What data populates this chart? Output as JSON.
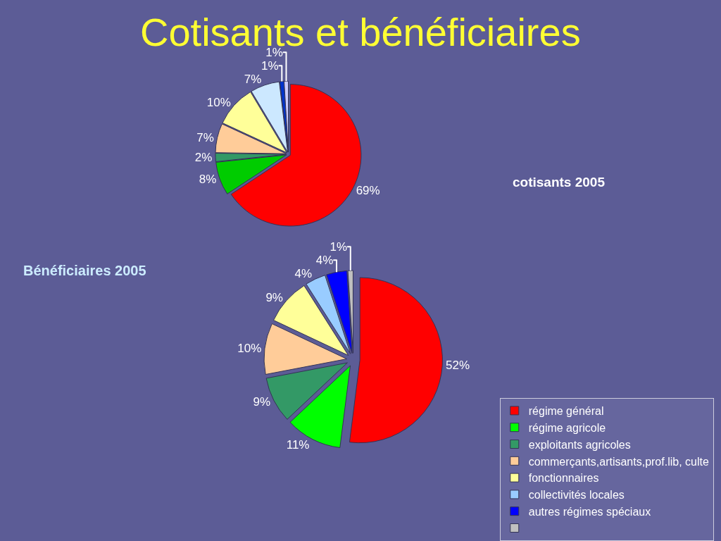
{
  "chart_data": [
    {
      "type": "pie",
      "title": "Cotisants et bénéficiaires",
      "subtitle": "cotisants 2005",
      "categories": [
        null,
        null,
        null,
        null,
        null,
        null,
        null,
        null
      ],
      "values": [
        69,
        8,
        2,
        7,
        10,
        7,
        1,
        1
      ],
      "value_labels": [
        "69%",
        "8%",
        "2%",
        "7%",
        "10%",
        "7%",
        "1%",
        "1%"
      ],
      "colors": [
        "#ff0000",
        "#00cc00",
        "#339966",
        "#ffcc99",
        "#ffff99",
        "#cce8ff",
        "#0033cc",
        "#ccccff"
      ],
      "legend": false
    },
    {
      "type": "pie",
      "title": "Bénéficiaires 2005",
      "categories": [
        "régime général",
        "régime agricole",
        "exploitants agricoles",
        "commerçants,artisants,prof.lib, culte",
        "fonctionnaires",
        "collectivités locales",
        "autres régimes spéciaux",
        null
      ],
      "values": [
        52,
        11,
        9,
        10,
        9,
        4,
        4,
        1
      ],
      "value_labels": [
        "52%",
        "11%",
        "9%",
        "10%",
        "9%",
        "4%",
        "4%",
        "1%"
      ],
      "colors": [
        "#ff0000",
        "#00ff00",
        "#339966",
        "#ffcc99",
        "#ffff99",
        "#99ccff",
        "#0000ff",
        "#c0c0c0"
      ],
      "legend": "bottom right"
    }
  ]
}
